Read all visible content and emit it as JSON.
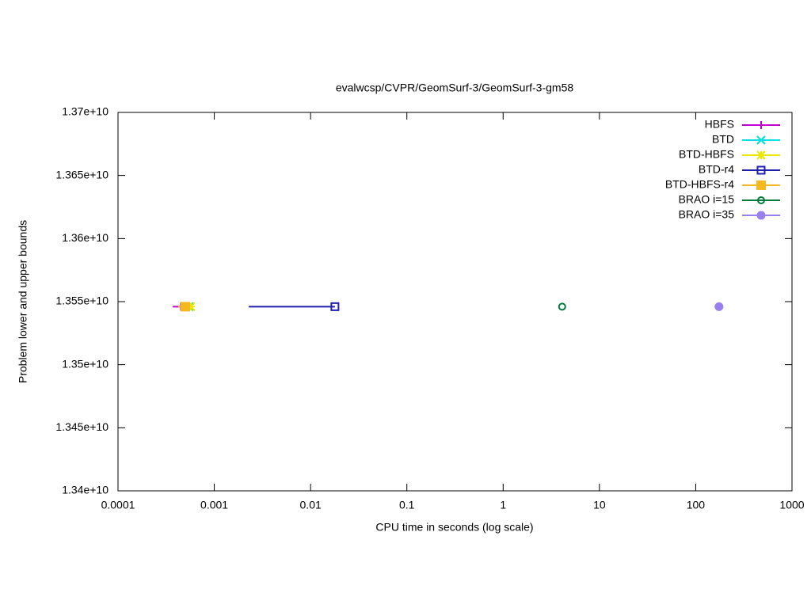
{
  "chart_data": {
    "type": "line",
    "title": "evalwcsp/CVPR/GeomSurf-3/GeomSurf-3-gm58",
    "xlabel": "CPU time in seconds (log scale)",
    "ylabel": "Problem lower and upper bounds",
    "xscale": "log",
    "xlim": [
      0.0001,
      1000
    ],
    "xticks": [
      0.0001,
      0.001,
      0.01,
      0.1,
      1,
      10,
      100,
      1000
    ],
    "ylim": [
      13400000000,
      13700000000
    ],
    "yticks": [
      {
        "value": 13400000000,
        "label": "1.34e+10"
      },
      {
        "value": 13450000000,
        "label": "1.345e+10"
      },
      {
        "value": 13500000000,
        "label": "1.35e+10"
      },
      {
        "value": 13550000000,
        "label": "1.355e+10"
      },
      {
        "value": 13600000000,
        "label": "1.36e+10"
      },
      {
        "value": 13650000000,
        "label": "1.365e+10"
      },
      {
        "value": 13700000000,
        "label": "1.37e+10"
      }
    ],
    "legend": "top-right",
    "series": [
      {
        "name": "HBFS",
        "color": "#c000d0",
        "marker": "plus",
        "x": [
          0.00037,
          0.00045
        ],
        "values": [
          13546000000,
          13546000000
        ]
      },
      {
        "name": "BTD",
        "color": "#00e0e0",
        "marker": "cross",
        "x": [
          0.00055
        ],
        "values": [
          13546000000
        ]
      },
      {
        "name": "BTD-HBFS",
        "color": "#e8e800",
        "marker": "star",
        "x": [
          0.00057
        ],
        "values": [
          13546000000
        ]
      },
      {
        "name": "BTD-r4",
        "color": "#2020b0",
        "marker": "square-open",
        "x": [
          0.00228,
          0.0179
        ],
        "values": [
          13546000000,
          13546000000
        ]
      },
      {
        "name": "BTD-HBFS-r4",
        "color": "#f5b820",
        "marker": "square",
        "x": [
          0.00042,
          0.0005
        ],
        "values": [
          13546000000,
          13546000000
        ]
      },
      {
        "name": "BRAO i=15",
        "color": "#007a3a",
        "marker": "circle-open",
        "x": [
          4.1
        ],
        "values": [
          13546000000
        ]
      },
      {
        "name": "BRAO i=35",
        "color": "#9980ee",
        "marker": "circle",
        "x": [
          174.6
        ],
        "values": [
          13546000000
        ]
      }
    ]
  }
}
